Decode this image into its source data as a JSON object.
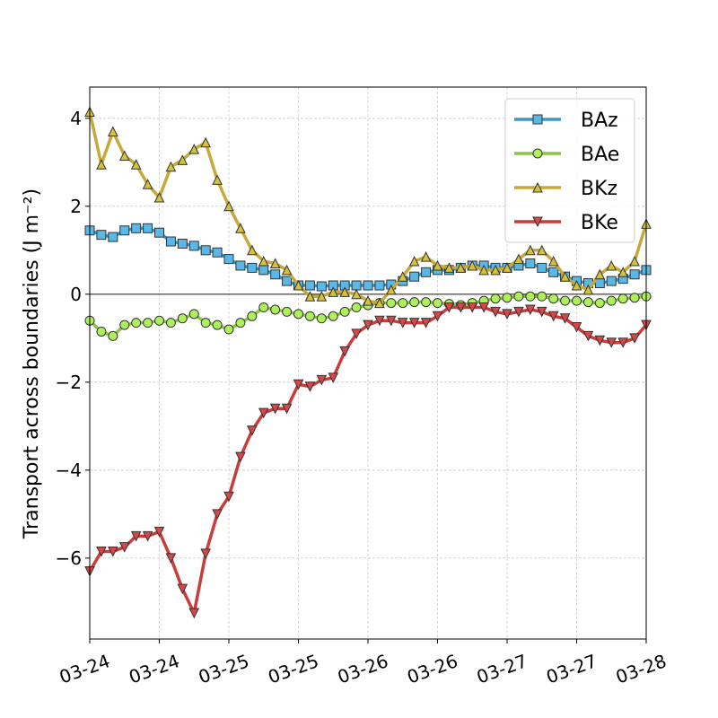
{
  "chart_data": {
    "type": "line",
    "ylabel": "Transport across boundaries (J m⁻²)",
    "x": [
      0,
      2,
      4,
      6,
      8,
      10,
      12,
      14,
      16,
      18,
      20,
      22,
      24,
      26,
      28,
      30,
      32,
      34,
      36,
      38,
      40,
      42,
      44,
      46,
      48,
      50,
      52,
      54,
      56,
      58,
      60,
      62,
      64,
      66,
      68,
      70,
      72,
      74,
      76,
      78,
      80,
      82,
      84,
      86,
      88,
      90,
      92,
      94,
      96
    ],
    "xlim": [
      0,
      96
    ],
    "xticks": [
      {
        "value": 0,
        "label": "03-24"
      },
      {
        "value": 12,
        "label": "03-24"
      },
      {
        "value": 24,
        "label": "03-25"
      },
      {
        "value": 36,
        "label": "03-25"
      },
      {
        "value": 48,
        "label": "03-26"
      },
      {
        "value": 60,
        "label": "03-26"
      },
      {
        "value": 72,
        "label": "03-27"
      },
      {
        "value": 84,
        "label": "03-27"
      },
      {
        "value": 96,
        "label": "03-28"
      }
    ],
    "ylim": [
      -7.84,
      4.71
    ],
    "yticks": [
      {
        "value": -6,
        "label": "−6"
      },
      {
        "value": -4,
        "label": "−4"
      },
      {
        "value": -2,
        "label": "−2"
      },
      0,
      2,
      4
    ],
    "grid": true,
    "hline": 0,
    "legend": "upper right",
    "series": [
      {
        "name": "BAz",
        "color": "#3f97c6",
        "marker": "square",
        "marker_color": "#5ab8e6",
        "values": [
          1.45,
          1.35,
          1.3,
          1.45,
          1.5,
          1.5,
          1.4,
          1.2,
          1.15,
          1.1,
          1.0,
          0.95,
          0.8,
          0.65,
          0.6,
          0.55,
          0.45,
          0.3,
          0.2,
          0.2,
          0.18,
          0.2,
          0.2,
          0.2,
          0.2,
          0.2,
          0.22,
          0.3,
          0.4,
          0.5,
          0.55,
          0.55,
          0.6,
          0.65,
          0.65,
          0.6,
          0.6,
          0.65,
          0.7,
          0.6,
          0.5,
          0.4,
          0.3,
          0.25,
          0.25,
          0.3,
          0.35,
          0.45,
          0.55
        ]
      },
      {
        "name": "BAe",
        "color": "#8bc34a",
        "marker": "circle",
        "marker_color": "#aef05c",
        "values": [
          -0.6,
          -0.85,
          -0.95,
          -0.7,
          -0.65,
          -0.65,
          -0.6,
          -0.65,
          -0.55,
          -0.45,
          -0.65,
          -0.7,
          -0.8,
          -0.65,
          -0.5,
          -0.3,
          -0.35,
          -0.4,
          -0.45,
          -0.5,
          -0.55,
          -0.5,
          -0.4,
          -0.3,
          -0.25,
          -0.2,
          -0.2,
          -0.2,
          -0.18,
          -0.18,
          -0.2,
          -0.22,
          -0.25,
          -0.2,
          -0.15,
          -0.1,
          -0.08,
          -0.05,
          -0.05,
          -0.05,
          -0.1,
          -0.15,
          -0.15,
          -0.18,
          -0.2,
          -0.15,
          -0.1,
          -0.08,
          -0.05
        ]
      },
      {
        "name": "BKz",
        "color": "#c5a93a",
        "marker": "triangle-up",
        "marker_color": "#d4c13e",
        "values": [
          4.15,
          2.95,
          3.7,
          3.15,
          2.95,
          2.5,
          2.2,
          2.9,
          3.05,
          3.3,
          3.45,
          2.6,
          2.0,
          1.5,
          1.0,
          0.75,
          0.7,
          0.55,
          0.2,
          -0.05,
          -0.05,
          0.05,
          0.05,
          0.0,
          -0.15,
          -0.2,
          0.1,
          0.4,
          0.75,
          0.85,
          0.65,
          0.6,
          0.6,
          0.65,
          0.55,
          0.55,
          0.6,
          0.8,
          1.0,
          1.0,
          0.75,
          0.4,
          0.2,
          0.1,
          0.45,
          0.65,
          0.5,
          0.75,
          1.6
        ]
      },
      {
        "name": "BKe",
        "color": "#c93c3c",
        "marker": "triangle-down",
        "marker_color": "#d64848",
        "values": [
          -6.3,
          -5.85,
          -5.85,
          -5.75,
          -5.5,
          -5.5,
          -5.4,
          -6.0,
          -6.7,
          -7.25,
          -5.9,
          -5.0,
          -4.6,
          -3.7,
          -3.1,
          -2.7,
          -2.6,
          -2.6,
          -2.05,
          -2.1,
          -1.95,
          -1.9,
          -1.3,
          -0.9,
          -0.7,
          -0.6,
          -0.6,
          -0.65,
          -0.65,
          -0.65,
          -0.5,
          -0.3,
          -0.3,
          -0.3,
          -0.3,
          -0.4,
          -0.45,
          -0.4,
          -0.35,
          -0.4,
          -0.5,
          -0.55,
          -0.75,
          -0.95,
          -1.05,
          -1.1,
          -1.1,
          -1.0,
          -0.7
        ]
      }
    ]
  }
}
